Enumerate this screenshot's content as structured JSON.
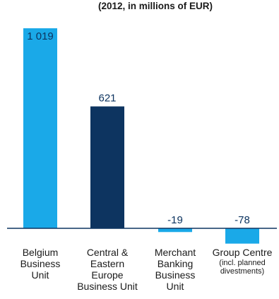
{
  "chart_data": {
    "type": "bar",
    "title": "",
    "subtitle": "(2012, in millions of EUR)",
    "xlabel": "",
    "ylabel": "",
    "grid": false,
    "categories": [
      {
        "lines": [
          "Belgium",
          "Business",
          "Unit"
        ],
        "note": []
      },
      {
        "lines": [
          "Central &",
          "Eastern",
          "Europe",
          "Business Unit"
        ],
        "note": []
      },
      {
        "lines": [
          "Merchant",
          "Banking",
          "Business",
          "Unit"
        ],
        "note": []
      },
      {
        "lines": [
          "Group Centre"
        ],
        "note": [
          "(incl. planned",
          "divestments)"
        ]
      }
    ],
    "values": [
      1019,
      621,
      -19,
      -78
    ],
    "value_labels": [
      "1 019",
      "621",
      "-19",
      "-78"
    ],
    "bar_colors": [
      "#1aa9e8",
      "#0d3460",
      "#1aa9e8",
      "#1aa9e8"
    ],
    "label_styles": [
      "inside",
      "above",
      "above",
      "above"
    ],
    "ylim": [
      -78,
      1019
    ]
  }
}
